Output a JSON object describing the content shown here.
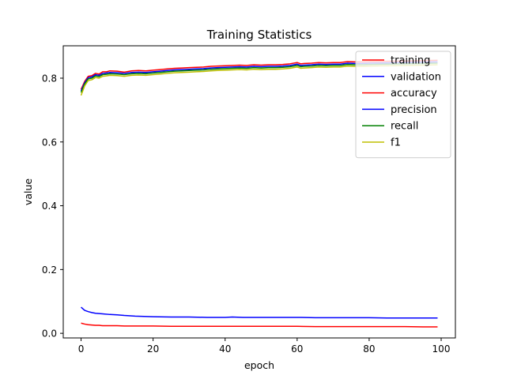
{
  "chart_data": {
    "type": "line",
    "title": "Training Statistics",
    "xlabel": "epoch",
    "ylabel": "value",
    "xlim": [
      -4.95,
      103.95
    ],
    "ylim": [
      -0.0145,
      0.9015
    ],
    "xticks": [
      0,
      20,
      40,
      60,
      80,
      100
    ],
    "yticks": [
      0.0,
      0.2,
      0.4,
      0.6,
      0.8
    ],
    "xtick_labels": [
      "0",
      "20",
      "40",
      "60",
      "80",
      "100"
    ],
    "ytick_labels": [
      "0.0",
      "0.2",
      "0.4",
      "0.6",
      "0.8"
    ],
    "legend_position": "upper right",
    "grid": false,
    "colors": {
      "training": "#ff0000",
      "validation": "#0000ff",
      "accuracy": "#ff0000",
      "precision": "#0000ff",
      "recall": "#008000",
      "f1": "#bfbf00"
    },
    "series": [
      {
        "name": "training",
        "color": "#ff0000",
        "x": [
          0,
          1,
          2,
          3,
          4,
          5,
          6,
          8,
          10,
          12,
          15,
          20,
          25,
          30,
          35,
          40,
          45,
          50,
          55,
          60,
          65,
          70,
          75,
          80,
          85,
          90,
          95,
          99
        ],
        "y": [
          0.032,
          0.029,
          0.027,
          0.026,
          0.025,
          0.025,
          0.024,
          0.024,
          0.024,
          0.023,
          0.023,
          0.023,
          0.022,
          0.022,
          0.022,
          0.022,
          0.022,
          0.022,
          0.022,
          0.022,
          0.021,
          0.021,
          0.021,
          0.021,
          0.021,
          0.021,
          0.02,
          0.02
        ]
      },
      {
        "name": "validation",
        "color": "#0000ff",
        "x": [
          0,
          1,
          2,
          3,
          4,
          5,
          6,
          8,
          10,
          12,
          15,
          20,
          25,
          30,
          35,
          40,
          42,
          45,
          50,
          55,
          60,
          65,
          70,
          75,
          80,
          85,
          90,
          95,
          99
        ],
        "y": [
          0.082,
          0.072,
          0.068,
          0.065,
          0.063,
          0.062,
          0.061,
          0.059,
          0.058,
          0.056,
          0.054,
          0.052,
          0.051,
          0.051,
          0.05,
          0.05,
          0.051,
          0.05,
          0.05,
          0.05,
          0.05,
          0.049,
          0.049,
          0.049,
          0.049,
          0.048,
          0.048,
          0.048,
          0.048
        ]
      },
      {
        "name": "accuracy",
        "color": "#ff0000",
        "x": [
          0,
          1,
          2,
          3,
          4,
          5,
          6,
          7,
          8,
          10,
          12,
          14,
          16,
          18,
          20,
          22,
          24,
          26,
          28,
          30,
          32,
          34,
          36,
          38,
          40,
          42,
          44,
          46,
          48,
          50,
          52,
          54,
          56,
          58,
          60,
          61,
          62,
          64,
          66,
          68,
          70,
          72,
          74,
          76,
          78,
          80,
          85,
          90,
          95,
          99
        ],
        "y": [
          0.765,
          0.79,
          0.806,
          0.808,
          0.815,
          0.813,
          0.82,
          0.82,
          0.823,
          0.822,
          0.819,
          0.823,
          0.824,
          0.823,
          0.825,
          0.827,
          0.829,
          0.831,
          0.832,
          0.833,
          0.834,
          0.835,
          0.837,
          0.838,
          0.839,
          0.84,
          0.841,
          0.84,
          0.842,
          0.841,
          0.842,
          0.842,
          0.843,
          0.845,
          0.849,
          0.845,
          0.846,
          0.847,
          0.849,
          0.848,
          0.849,
          0.849,
          0.852,
          0.851,
          0.851,
          0.852,
          0.853,
          0.854,
          0.855,
          0.856
        ]
      },
      {
        "name": "precision",
        "color": "#0000ff",
        "x": [
          0,
          1,
          2,
          3,
          4,
          5,
          6,
          7,
          8,
          10,
          12,
          14,
          16,
          18,
          20,
          22,
          24,
          26,
          28,
          30,
          32,
          34,
          36,
          38,
          40,
          42,
          44,
          46,
          48,
          50,
          52,
          54,
          56,
          58,
          60,
          61,
          62,
          64,
          66,
          68,
          70,
          72,
          74,
          76,
          78,
          80,
          85,
          90,
          95,
          99
        ],
        "y": [
          0.76,
          0.786,
          0.802,
          0.804,
          0.811,
          0.809,
          0.815,
          0.816,
          0.818,
          0.817,
          0.815,
          0.818,
          0.819,
          0.818,
          0.82,
          0.822,
          0.824,
          0.826,
          0.827,
          0.828,
          0.829,
          0.83,
          0.832,
          0.833,
          0.834,
          0.835,
          0.836,
          0.835,
          0.837,
          0.836,
          0.837,
          0.837,
          0.838,
          0.84,
          0.844,
          0.84,
          0.841,
          0.842,
          0.844,
          0.843,
          0.844,
          0.844,
          0.847,
          0.846,
          0.846,
          0.847,
          0.848,
          0.849,
          0.85,
          0.851
        ]
      },
      {
        "name": "recall",
        "color": "#008000",
        "x": [
          0,
          1,
          2,
          3,
          4,
          5,
          6,
          7,
          8,
          10,
          12,
          14,
          16,
          18,
          20,
          22,
          24,
          26,
          28,
          30,
          32,
          34,
          36,
          38,
          40,
          42,
          44,
          46,
          48,
          50,
          52,
          54,
          56,
          58,
          60,
          61,
          62,
          64,
          66,
          68,
          70,
          72,
          74,
          76,
          78,
          80,
          85,
          90,
          95,
          99
        ],
        "y": [
          0.755,
          0.782,
          0.798,
          0.8,
          0.807,
          0.805,
          0.811,
          0.812,
          0.814,
          0.813,
          0.811,
          0.814,
          0.815,
          0.814,
          0.816,
          0.818,
          0.82,
          0.822,
          0.823,
          0.824,
          0.825,
          0.826,
          0.828,
          0.829,
          0.83,
          0.831,
          0.832,
          0.831,
          0.833,
          0.832,
          0.833,
          0.833,
          0.834,
          0.836,
          0.84,
          0.836,
          0.837,
          0.838,
          0.84,
          0.839,
          0.84,
          0.84,
          0.843,
          0.842,
          0.842,
          0.843,
          0.844,
          0.845,
          0.846,
          0.847
        ]
      },
      {
        "name": "f1",
        "color": "#bfbf00",
        "x": [
          0,
          1,
          2,
          3,
          4,
          5,
          6,
          7,
          8,
          10,
          12,
          14,
          16,
          18,
          20,
          22,
          24,
          26,
          28,
          30,
          32,
          34,
          36,
          38,
          40,
          42,
          44,
          46,
          48,
          50,
          52,
          54,
          56,
          58,
          60,
          61,
          62,
          64,
          66,
          68,
          70,
          72,
          74,
          76,
          78,
          80,
          85,
          90,
          95,
          99
        ],
        "y": [
          0.746,
          0.776,
          0.793,
          0.795,
          0.802,
          0.8,
          0.806,
          0.807,
          0.809,
          0.808,
          0.806,
          0.809,
          0.81,
          0.809,
          0.811,
          0.813,
          0.815,
          0.817,
          0.818,
          0.819,
          0.82,
          0.821,
          0.823,
          0.824,
          0.825,
          0.826,
          0.827,
          0.826,
          0.828,
          0.827,
          0.828,
          0.828,
          0.829,
          0.831,
          0.835,
          0.831,
          0.832,
          0.833,
          0.835,
          0.834,
          0.835,
          0.835,
          0.838,
          0.837,
          0.837,
          0.838,
          0.839,
          0.84,
          0.841,
          0.842
        ]
      }
    ]
  }
}
